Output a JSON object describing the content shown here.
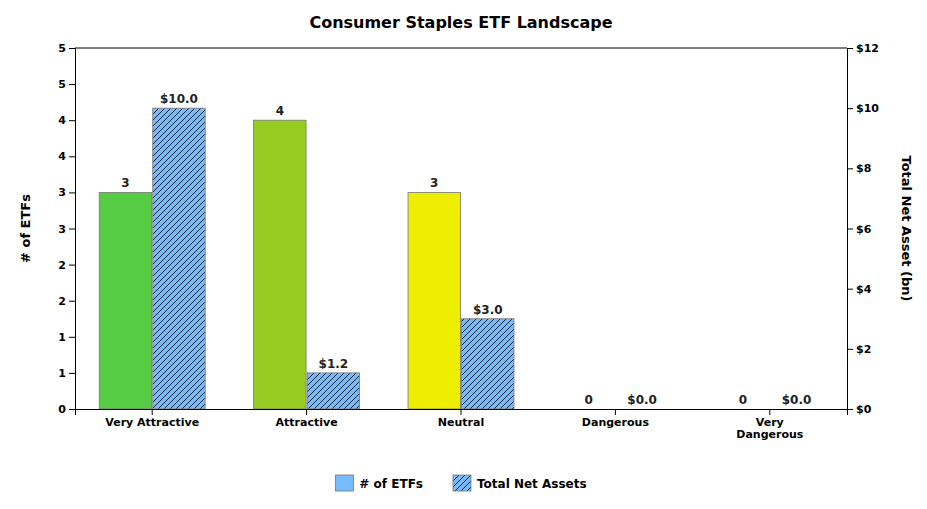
{
  "chart_data": {
    "type": "bar",
    "title": "Consumer Staples ETF Landscape",
    "categories": [
      "Very Attractive",
      "Attractive",
      "Neutral",
      "Dangerous",
      "Very\nDangerous"
    ],
    "ylabel": "# of ETFs",
    "y2label": "Total Net Asset (bn)",
    "series": [
      {
        "name": "# of ETFs",
        "colors": [
          "#55CC44",
          "#99CC22",
          "#EEEE00",
          "#BBBBBB",
          "#BBBBBB"
        ],
        "values": [
          3,
          4,
          3,
          0,
          0
        ]
      },
      {
        "name": "Total Net Assets",
        "color": "#77BBFF",
        "axis": "y2",
        "values": [
          10.0,
          1.2,
          3.0,
          0.0,
          0.0
        ],
        "value_labels": [
          "$10.0",
          "$1.2",
          "$3.0",
          "$0.0",
          "$0.0"
        ]
      }
    ],
    "ylim": [
      0,
      5
    ],
    "yticks": [
      0,
      {
        "value": 0.5,
        "label": "1"
      },
      1,
      {
        "value": 1.5,
        "label": "2"
      },
      2,
      {
        "value": 2.5,
        "label": "3"
      },
      3,
      {
        "value": 3.5,
        "label": "4"
      },
      4,
      {
        "value": 4.5,
        "label": "5"
      },
      5
    ],
    "y2lim": [
      0,
      12
    ],
    "y2ticks": [
      {
        "value": 0,
        "label": "$0"
      },
      {
        "value": 2,
        "label": "$2"
      },
      {
        "value": 4,
        "label": "$4"
      },
      {
        "value": 6,
        "label": "$6"
      },
      {
        "value": 8,
        "label": "$8"
      },
      {
        "value": 10,
        "label": "$10"
      },
      {
        "value": 12,
        "label": "$12"
      }
    ],
    "data_labels": true,
    "legend": "bottom",
    "grid": false
  }
}
